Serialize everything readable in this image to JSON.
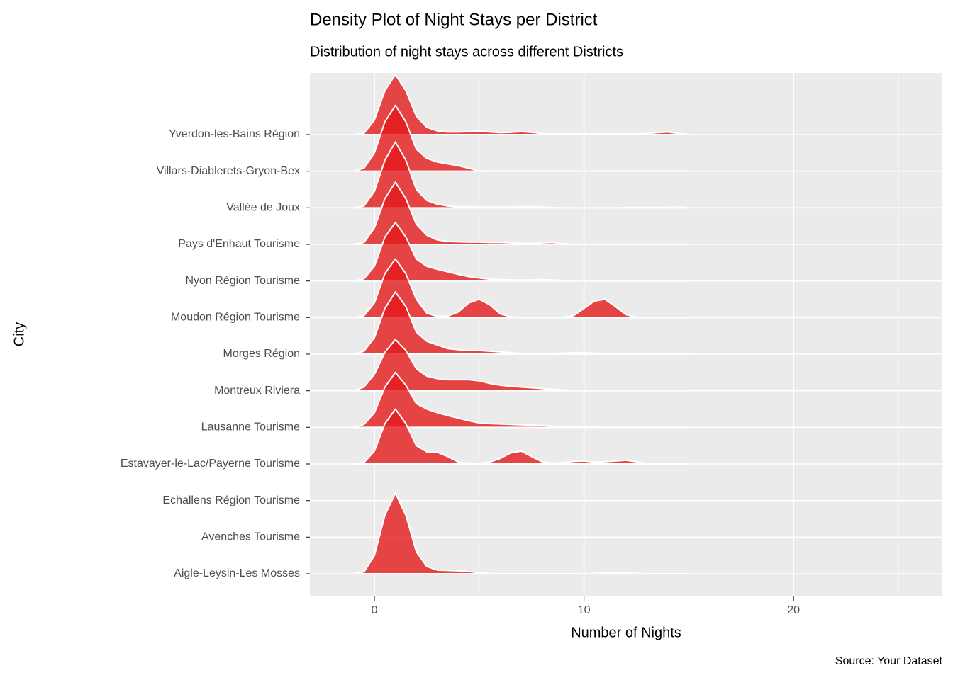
{
  "chart_data": {
    "type": "ridgeline",
    "title": "Density Plot of Night Stays per District",
    "subtitle": "Distribution of night stays across different Districts",
    "caption": "Source: Your Dataset",
    "x_label": "Number of Nights",
    "y_label": "City",
    "color": "#e31a1c",
    "grid": true,
    "xlim": [
      -3.08,
      27.1
    ],
    "xticks": [
      0,
      10,
      20
    ],
    "categories": [
      "Aigle-Leysin-Les Mosses",
      "Avenches Tourisme",
      "Echallens Région Tourisme",
      "Estavayer-le-Lac/Payerne Tourisme",
      "Lausanne Tourisme",
      "Montreux Riviera",
      "Morges Région",
      "Moudon Région Tourisme",
      "Nyon Région Tourisme",
      "Pays d'Enhaut Tourisme",
      "Vallée de Joux",
      "Villars-Diablerets-Gryon-Bex",
      "Yverdon-les-Bains Région"
    ],
    "x": [
      -1,
      -0.5,
      0,
      0.5,
      1,
      1.5,
      2,
      2.5,
      3,
      3.5,
      4,
      4.5,
      5,
      5.5,
      6,
      6.5,
      7,
      7.5,
      8,
      8.5,
      9,
      9.5,
      10,
      10.5,
      11,
      11.5,
      12,
      12.5,
      13,
      13.5,
      14,
      14.5,
      15
    ],
    "values": [
      [
        0,
        0.05,
        0.5,
        1.6,
        2.2,
        1.6,
        0.6,
        0.2,
        0.1,
        0.09,
        0.08,
        0.06,
        0.03,
        0.01,
        0,
        0,
        0,
        0,
        0,
        0,
        0,
        0,
        0,
        0.01,
        0.02,
        0.02,
        0.02,
        0.01,
        0,
        0,
        0,
        0,
        0
      ],
      null,
      null,
      [
        0,
        0.04,
        0.35,
        1.1,
        1.5,
        1.1,
        0.5,
        0.33,
        0.32,
        0.2,
        0.05,
        0.02,
        0.02,
        0.05,
        0.15,
        0.3,
        0.35,
        0.2,
        0.06,
        0.02,
        0.04,
        0.07,
        0.08,
        0.05,
        0.06,
        0.08,
        0.1,
        0.06,
        0.01,
        0,
        0,
        0,
        0
      ],
      [
        0,
        0.08,
        0.4,
        1.1,
        1.5,
        1.15,
        0.65,
        0.5,
        0.4,
        0.32,
        0.25,
        0.18,
        0.12,
        0.1,
        0.09,
        0.08,
        0.07,
        0.06,
        0.05,
        0.03,
        0.02,
        0.02,
        0.01,
        0.01,
        0,
        0,
        0,
        0,
        0,
        0,
        0,
        0,
        0
      ],
      [
        0,
        0.1,
        0.45,
        1.05,
        1.4,
        1.1,
        0.6,
        0.4,
        0.33,
        0.3,
        0.3,
        0.3,
        0.27,
        0.2,
        0.15,
        0.12,
        0.1,
        0.08,
        0.06,
        0.04,
        0.02,
        0.01,
        0,
        0,
        0,
        0,
        0,
        0,
        0,
        0,
        0,
        0,
        0
      ],
      [
        0,
        0.08,
        0.45,
        1.25,
        1.7,
        1.3,
        0.6,
        0.35,
        0.25,
        0.15,
        0.12,
        0.1,
        0.1,
        0.08,
        0.06,
        0.04,
        0.02,
        0.01,
        0.01,
        0.02,
        0.03,
        0.04,
        0.04,
        0.03,
        0.01,
        0,
        0,
        0,
        0.01,
        0.02,
        0.02,
        0.01,
        0
      ],
      [
        0,
        0.05,
        0.4,
        1.2,
        1.6,
        1.2,
        0.5,
        0.12,
        0.03,
        0.04,
        0.15,
        0.4,
        0.5,
        0.35,
        0.1,
        0.02,
        0,
        0,
        0,
        0,
        0.01,
        0.05,
        0.25,
        0.45,
        0.5,
        0.3,
        0.08,
        0.01,
        0,
        0,
        0,
        0,
        0
      ],
      [
        0,
        0.06,
        0.4,
        1.2,
        1.6,
        1.2,
        0.6,
        0.4,
        0.32,
        0.25,
        0.18,
        0.12,
        0.08,
        0.05,
        0.04,
        0.03,
        0.03,
        0.03,
        0.04,
        0.03,
        0.01,
        0,
        0,
        0,
        0,
        0,
        0,
        0,
        0,
        0,
        0,
        0,
        0
      ],
      [
        0,
        0.05,
        0.45,
        1.25,
        1.7,
        1.25,
        0.55,
        0.25,
        0.12,
        0.08,
        0.07,
        0.06,
        0.06,
        0.05,
        0.05,
        0.04,
        0.03,
        0.03,
        0.04,
        0.05,
        0.02,
        0,
        0,
        0,
        0,
        0,
        0,
        0,
        0,
        0,
        0,
        0,
        0
      ],
      [
        0,
        0.05,
        0.45,
        1.3,
        1.8,
        1.3,
        0.5,
        0.2,
        0.1,
        0.05,
        0.03,
        0.03,
        0.02,
        0.02,
        0.02,
        0.02,
        0.03,
        0.03,
        0.02,
        0.01,
        0,
        0,
        0,
        0,
        0,
        0,
        0.01,
        0.01,
        0.01,
        0.01,
        0.01,
        0.02,
        0
      ],
      [
        0,
        0.08,
        0.5,
        1.35,
        1.8,
        1.35,
        0.6,
        0.35,
        0.25,
        0.2,
        0.15,
        0.08,
        0.01,
        0,
        0,
        0,
        0,
        0,
        0,
        0,
        0,
        0,
        0,
        0,
        0,
        0,
        0,
        0,
        0,
        0,
        0,
        0,
        0
      ],
      [
        0,
        0.03,
        0.4,
        1.2,
        1.64,
        1.2,
        0.5,
        0.2,
        0.1,
        0.07,
        0.07,
        0.08,
        0.1,
        0.07,
        0.05,
        0.06,
        0.08,
        0.06,
        0.03,
        0.02,
        0.02,
        0.02,
        0.02,
        0.02,
        0.02,
        0.02,
        0.02,
        0.02,
        0.03,
        0.05,
        0.07,
        0.03,
        0
      ]
    ]
  }
}
